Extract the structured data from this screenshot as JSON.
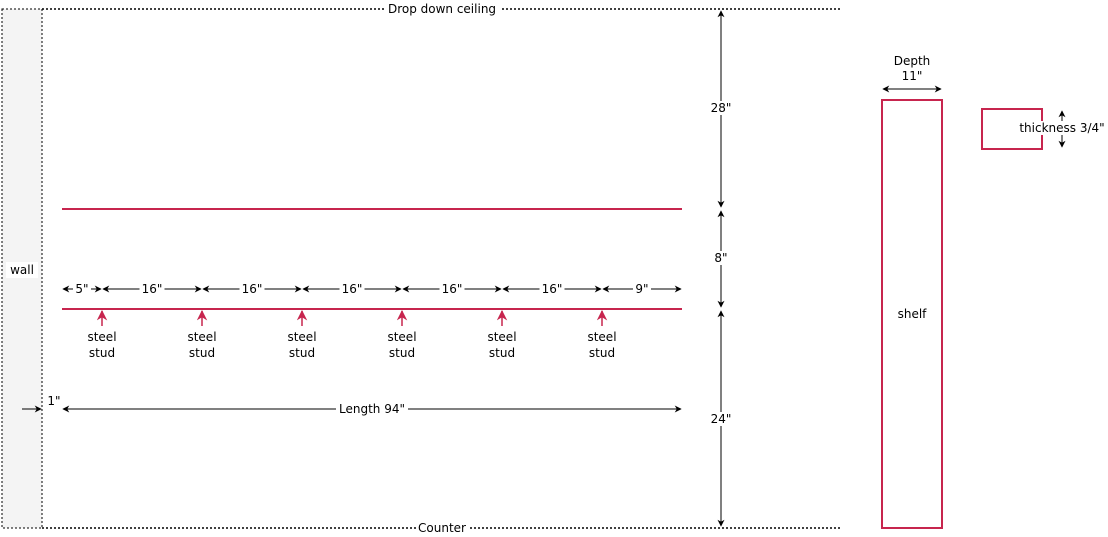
{
  "colors": {
    "shelf_line": "#c7254e",
    "dimension": "#000000",
    "wall_fill": "#f4f4f4",
    "stud_arrow": "#c7254e"
  },
  "labels": {
    "ceiling": "Drop down ceiling",
    "counter": "Counter",
    "wall": "wall",
    "top_gap": "28\"",
    "shelf_gap": "8\"",
    "bottom_gap": "24\"",
    "wall_offset": "1\"",
    "length": "Length 94\"",
    "depth_line1": "Depth",
    "depth_line2": "11\"",
    "shelf": "shelf",
    "thickness": "thickness 3/4\""
  },
  "spacing": [
    "5\"",
    "16\"",
    "16\"",
    "16\"",
    "16\"",
    "16\"",
    "9\""
  ],
  "studs": [
    {
      "line1": "steel",
      "line2": "stud"
    },
    {
      "line1": "steel",
      "line2": "stud"
    },
    {
      "line1": "steel",
      "line2": "stud"
    },
    {
      "line1": "steel",
      "line2": "stud"
    },
    {
      "line1": "steel",
      "line2": "stud"
    },
    {
      "line1": "steel",
      "line2": "stud"
    }
  ]
}
